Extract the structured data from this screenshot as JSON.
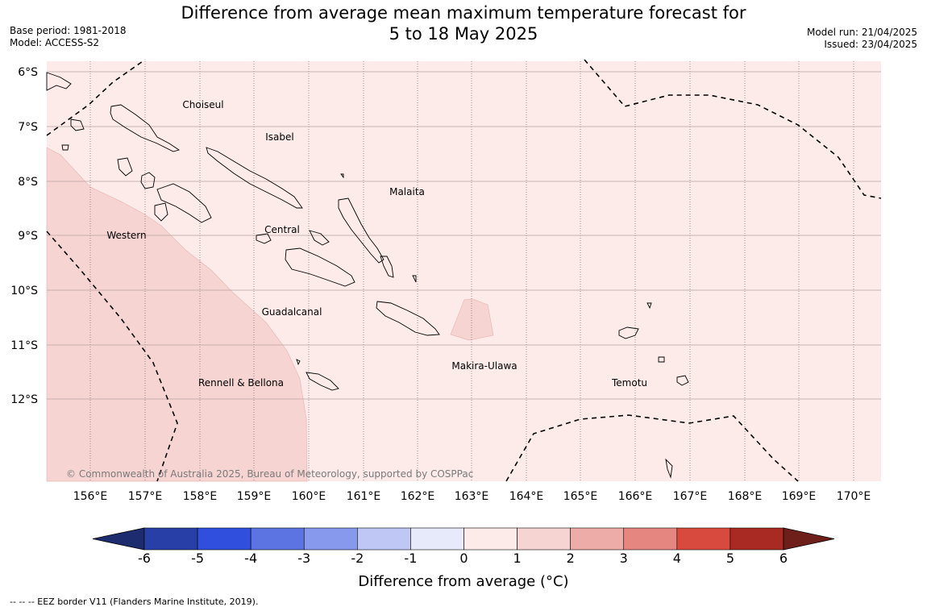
{
  "title_line1": "Difference from average mean maximum temperature forecast for",
  "title_line2": "5 to 18 May 2025",
  "base_period": "Base period: 1981-2018",
  "model": "Model: ACCESS-S2",
  "model_run": "Model run: 21/04/2025",
  "issued": "Issued: 23/04/2025",
  "lat_labels": [
    "6°S",
    "7°S",
    "8°S",
    "9°S",
    "10°S",
    "11°S",
    "12°S"
  ],
  "lon_labels": [
    "156°E",
    "157°E",
    "158°E",
    "159°E",
    "160°E",
    "161°E",
    "162°E",
    "163°E",
    "164°E",
    "165°E",
    "166°E",
    "167°E",
    "168°E",
    "169°E",
    "170°E"
  ],
  "region_labels": [
    "Choiseul",
    "Isabel",
    "Malaita",
    "Western",
    "Central",
    "Guadalcanal",
    "Makira-Ulawa",
    "Rennell & Bellona",
    "Temotu"
  ],
  "copyright": "© Commonwealth of Australia 2025, Bureau of Meteorology, supported by COSPPac",
  "colorbar": {
    "ticks": [
      "-6",
      "-5",
      "-4",
      "-3",
      "-2",
      "-1",
      "0",
      "1",
      "2",
      "3",
      "4",
      "5",
      "6"
    ],
    "colors": [
      "#283fa8",
      "#2f4fdc",
      "#5b74e2",
      "#8699ec",
      "#bfc8f4",
      "#e6eafa",
      "#fcebe9",
      "#f6d4d2",
      "#eeaca9",
      "#e68680",
      "#d94a3e",
      "#a82a22"
    ],
    "low_extend_color": "#1d2c6e",
    "high_extend_color": "#6e1f1a",
    "title": "Difference from average (°C)"
  },
  "footnote": "--  --  -- EEZ border V11 (Flanders Marine Institute, 2019).",
  "map_fill_colors": {
    "zero_to_one": "#fcebe9",
    "one_to_two": "#f6d4d2"
  }
}
